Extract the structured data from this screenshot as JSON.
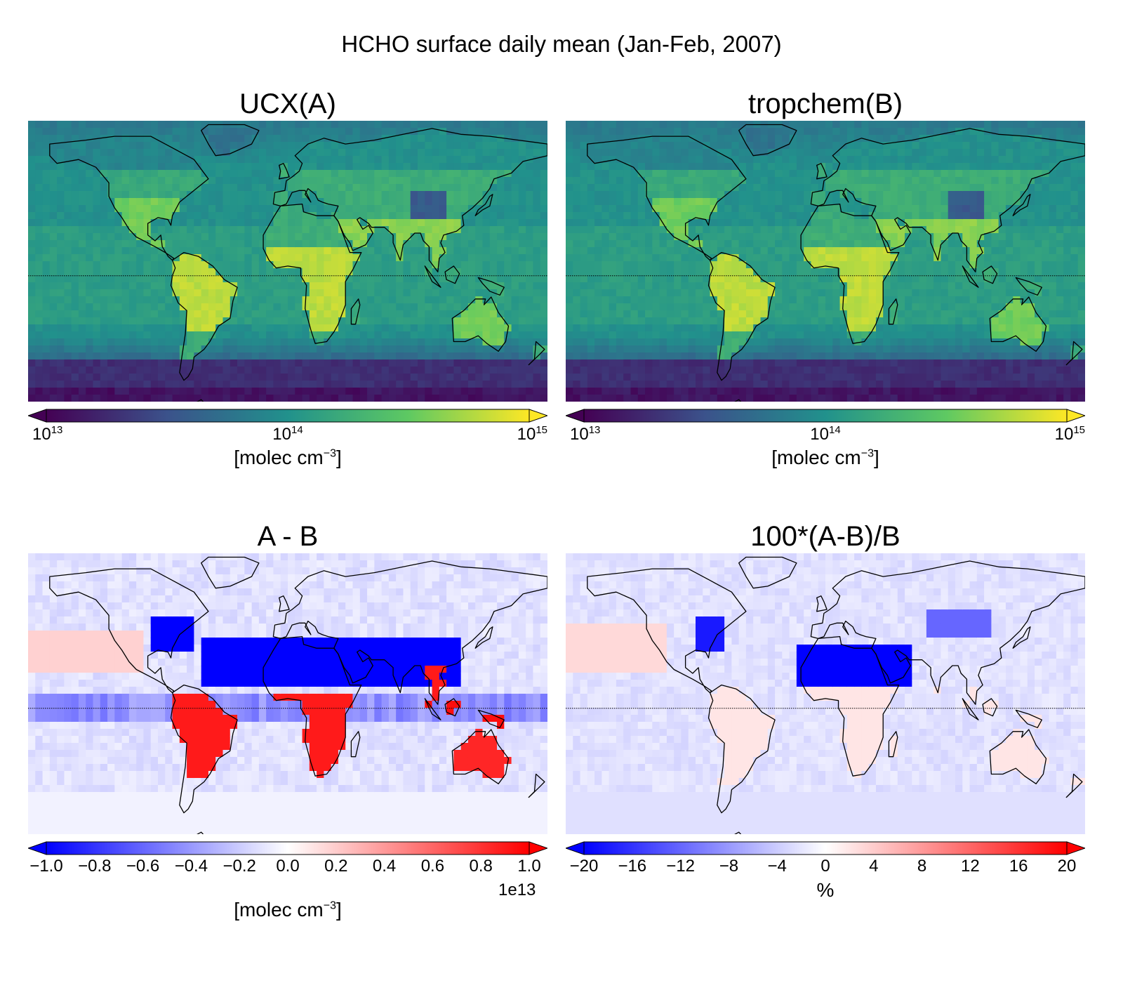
{
  "figure": {
    "title": "HCHO surface daily mean (Jan-Feb, 2007)"
  },
  "panels": [
    {
      "id": "A",
      "title": "UCX(A)",
      "colormap": "viridis",
      "scale": "log",
      "colorbar": {
        "ticks": [
          {
            "value": 10000000000000.0,
            "base": "10",
            "exp": "13"
          },
          {
            "value": 100000000000000.0,
            "base": "10",
            "exp": "14"
          },
          {
            "value": 1000000000000000.0,
            "base": "10",
            "exp": "15"
          }
        ],
        "range": [
          10000000000000.0,
          1000000000000000.0
        ],
        "label_pre": "[molec cm",
        "label_sup": "−3",
        "label_post": "]",
        "offset": ""
      }
    },
    {
      "id": "B",
      "title": "tropchem(B)",
      "colormap": "viridis",
      "scale": "log",
      "colorbar": {
        "ticks": [
          {
            "value": 10000000000000.0,
            "base": "10",
            "exp": "13"
          },
          {
            "value": 100000000000000.0,
            "base": "10",
            "exp": "14"
          },
          {
            "value": 1000000000000000.0,
            "base": "10",
            "exp": "15"
          }
        ],
        "range": [
          10000000000000.0,
          1000000000000000.0
        ],
        "label_pre": "[molec cm",
        "label_sup": "−3",
        "label_post": "]",
        "offset": ""
      }
    },
    {
      "id": "diff",
      "title": "A - B",
      "colormap": "bwr",
      "scale": "linear",
      "colorbar": {
        "ticks": [
          {
            "value": -1.0,
            "text": "−1.0"
          },
          {
            "value": -0.8,
            "text": "−0.8"
          },
          {
            "value": -0.6,
            "text": "−0.6"
          },
          {
            "value": -0.4,
            "text": "−0.4"
          },
          {
            "value": -0.2,
            "text": "−0.2"
          },
          {
            "value": 0.0,
            "text": "0.0"
          },
          {
            "value": 0.2,
            "text": "0.2"
          },
          {
            "value": 0.4,
            "text": "0.4"
          },
          {
            "value": 0.6,
            "text": "0.6"
          },
          {
            "value": 0.8,
            "text": "0.8"
          },
          {
            "value": 1.0,
            "text": "1.0"
          }
        ],
        "range": [
          -1.0,
          1.0
        ],
        "label_pre": "[molec cm",
        "label_sup": "−3",
        "label_post": "]",
        "offset": "1e13"
      }
    },
    {
      "id": "reldiff",
      "title": "100*(A-B)/B",
      "colormap": "bwr",
      "scale": "linear",
      "colorbar": {
        "ticks": [
          {
            "value": -20,
            "text": "−20"
          },
          {
            "value": -16,
            "text": "−16"
          },
          {
            "value": -12,
            "text": "−12"
          },
          {
            "value": -8,
            "text": "−8"
          },
          {
            "value": -4,
            "text": "−4"
          },
          {
            "value": 0,
            "text": "0"
          },
          {
            "value": 4,
            "text": "4"
          },
          {
            "value": 8,
            "text": "8"
          },
          {
            "value": 12,
            "text": "12"
          },
          {
            "value": 16,
            "text": "16"
          },
          {
            "value": 20,
            "text": "20"
          }
        ],
        "range": [
          -20,
          20
        ],
        "label_pre": "%",
        "label_sup": "",
        "label_post": "",
        "offset": ""
      }
    }
  ],
  "colors": {
    "viridis": [
      "#440154",
      "#3b528b",
      "#21918c",
      "#5ec962",
      "#fde725"
    ],
    "bwr": [
      "#0000ff",
      "#ffffff",
      "#ff0000"
    ],
    "coast": "#000000"
  }
}
